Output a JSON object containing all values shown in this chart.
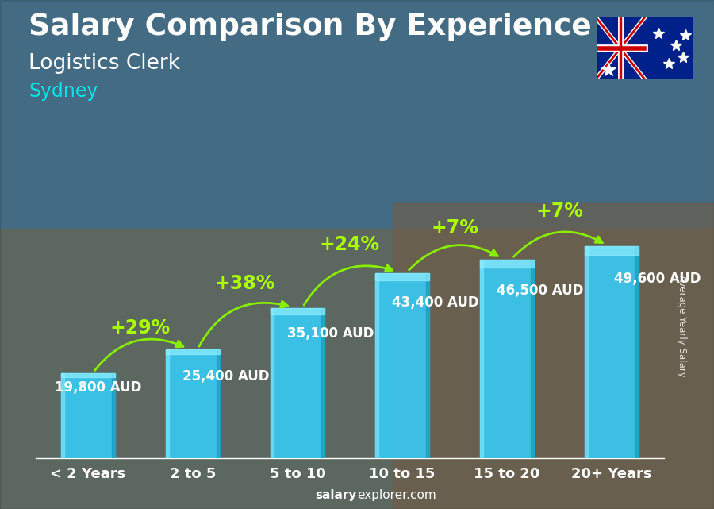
{
  "title": "Salary Comparison By Experience",
  "subtitle": "Logistics Clerk",
  "city": "Sydney",
  "categories": [
    "< 2 Years",
    "2 to 5",
    "5 to 10",
    "10 to 15",
    "15 to 20",
    "20+ Years"
  ],
  "values": [
    19800,
    25400,
    35100,
    43400,
    46500,
    49600
  ],
  "value_labels": [
    "19,800 AUD",
    "25,400 AUD",
    "35,100 AUD",
    "43,400 AUD",
    "46,500 AUD",
    "49,600 AUD"
  ],
  "pct_changes": [
    "+29%",
    "+38%",
    "+24%",
    "+7%",
    "+7%"
  ],
  "bar_color": "#38c8f0",
  "pct_color": "#aaff00",
  "value_color": "#ffffff",
  "title_color": "#ffffff",
  "subtitle_color": "#ffffff",
  "city_color": "#00e5e5",
  "ylabel": "Average Yearly Salary",
  "footer": "salaryexplorer.com",
  "ylim": [
    0,
    62000
  ],
  "title_fontsize": 27,
  "subtitle_fontsize": 19,
  "city_fontsize": 17,
  "value_fontsize": 12,
  "pct_fontsize": 17,
  "cat_fontsize": 13,
  "bg_colors": [
    "#5a8a9a",
    "#6a7a8a",
    "#7a8a7a",
    "#8a7a6a",
    "#9a8a6a"
  ],
  "arrow_color": "#88ee00"
}
